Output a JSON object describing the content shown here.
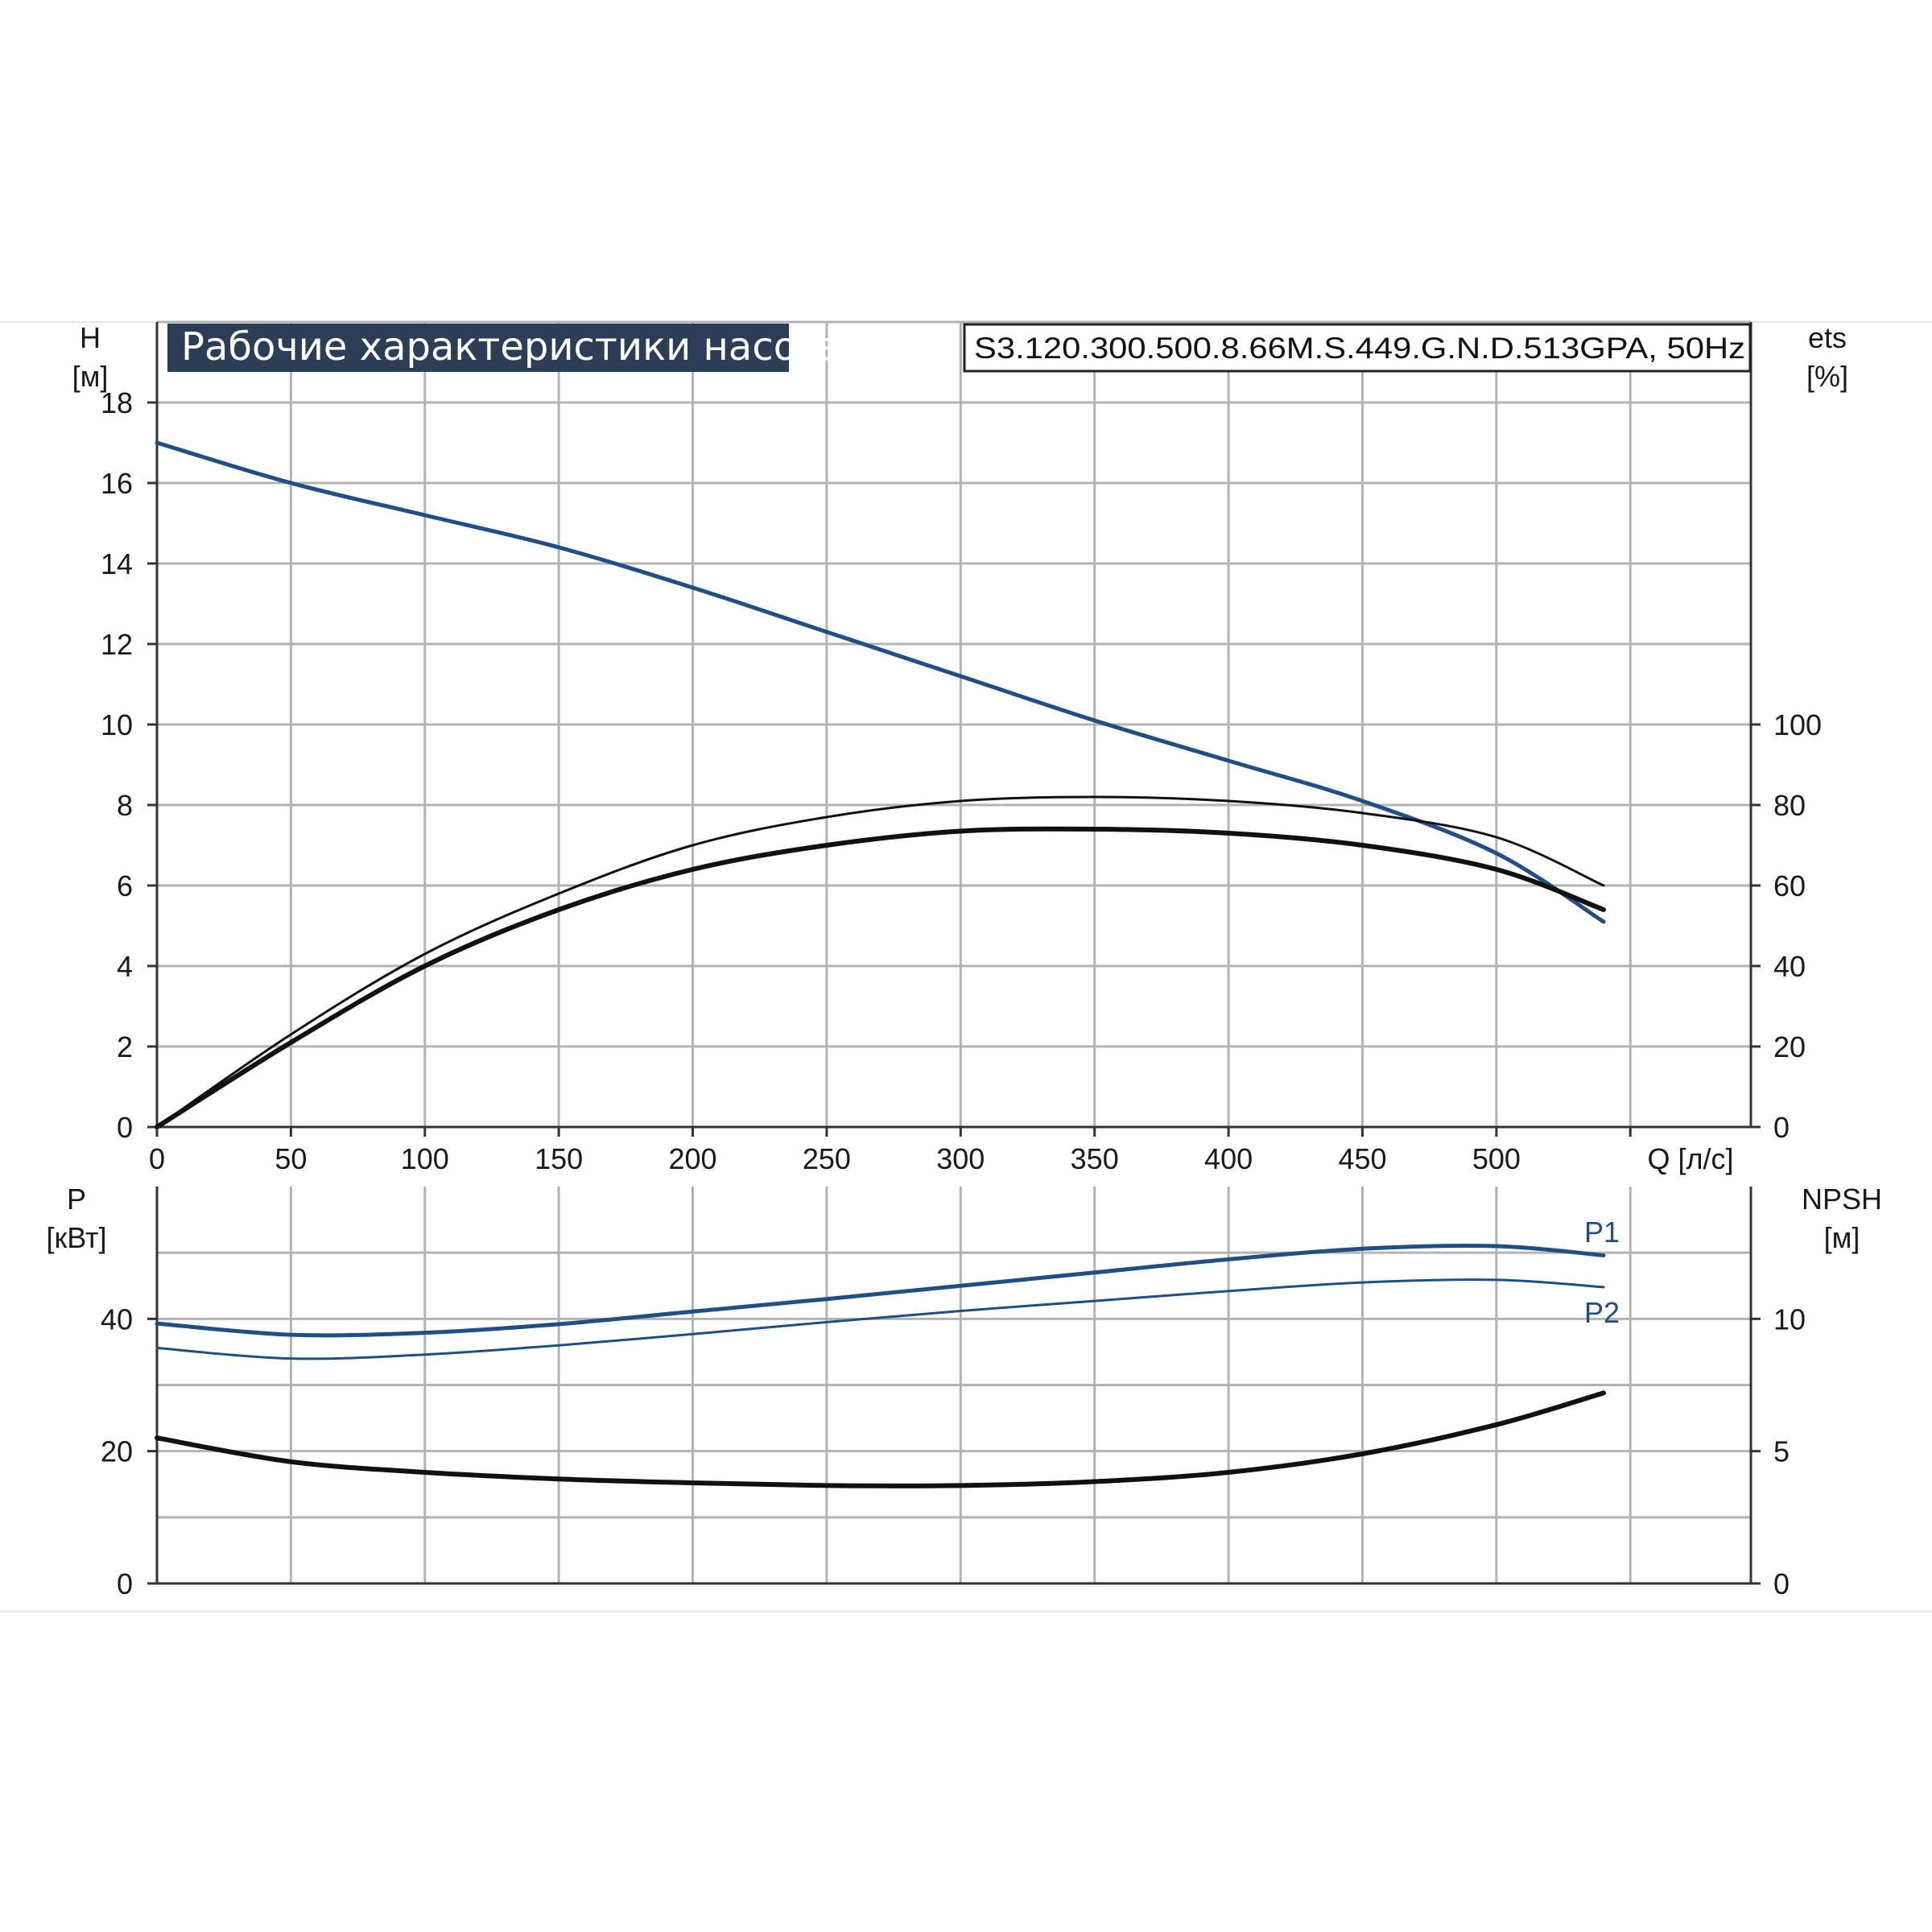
{
  "header": {
    "title": "Рабочие характеристики насоса",
    "model": "S3.120.300.500.8.66M.S.449.G.N.D.513GPA, 50Hz"
  },
  "colors": {
    "title_bg": "#2c3e55",
    "blue": "#1f4f85",
    "black": "#111111",
    "grid": "#b3b3b3"
  },
  "chart_data": [
    {
      "type": "line",
      "panel": "head-efficiency",
      "xlabel": "Q [л/с]",
      "xlim": [
        0,
        595
      ],
      "x_ticks": [
        0,
        50,
        100,
        150,
        200,
        250,
        300,
        350,
        400,
        450,
        500
      ],
      "left_axis": {
        "label": "H",
        "unit": "[м]",
        "ylim": [
          0,
          20
        ],
        "ticks": [
          0,
          2,
          4,
          6,
          8,
          10,
          12,
          14,
          16,
          18
        ]
      },
      "right_axis": {
        "label": "ets",
        "unit": "[%]",
        "ylim": [
          0,
          200
        ],
        "ticks": [
          0,
          20,
          40,
          60,
          80,
          100
        ]
      },
      "grid": true,
      "series": [
        {
          "axis": "left",
          "color": "blue",
          "width": 5,
          "x": [
            0,
            50,
            100,
            150,
            200,
            250,
            300,
            350,
            400,
            450,
            500,
            540
          ],
          "y": [
            17.0,
            16.0,
            15.2,
            14.4,
            13.4,
            12.3,
            11.2,
            10.1,
            9.1,
            8.1,
            6.8,
            5.1
          ]
        },
        {
          "axis": "right",
          "color": "black",
          "width": 3,
          "x": [
            0,
            50,
            100,
            150,
            200,
            250,
            300,
            350,
            400,
            450,
            500,
            540
          ],
          "y": [
            0,
            23,
            43,
            58,
            70,
            77,
            81,
            82,
            81,
            78,
            72,
            60
          ]
        },
        {
          "axis": "right",
          "color": "black",
          "width": 6,
          "x": [
            0,
            50,
            100,
            150,
            200,
            250,
            300,
            350,
            400,
            450,
            500,
            540
          ],
          "y": [
            0,
            21,
            40,
            54,
            64,
            70,
            73.5,
            74,
            73,
            70,
            64,
            54
          ]
        }
      ]
    },
    {
      "type": "line",
      "panel": "power-npsh",
      "xlim": [
        0,
        595
      ],
      "left_axis": {
        "label": "P",
        "unit": "[кВт]",
        "ylim": [
          0,
          60
        ],
        "ticks": [
          0,
          20,
          40
        ]
      },
      "right_axis": {
        "label": "NPSH",
        "unit": "[м]",
        "ylim": [
          0,
          15
        ],
        "ticks": [
          0,
          5,
          10
        ]
      },
      "grid": true,
      "series": [
        {
          "name": "P1",
          "axis": "left",
          "color": "blue",
          "width": 5,
          "x": [
            0,
            50,
            100,
            150,
            200,
            250,
            300,
            350,
            400,
            450,
            500,
            540
          ],
          "y": [
            39.3,
            37.6,
            37.9,
            39.2,
            41.1,
            43.0,
            45.0,
            47.0,
            49.0,
            50.6,
            51.0,
            49.6
          ]
        },
        {
          "name": "P2",
          "axis": "left",
          "color": "blue",
          "width": 3,
          "x": [
            0,
            50,
            100,
            150,
            200,
            250,
            300,
            350,
            400,
            450,
            500,
            540
          ],
          "y": [
            35.6,
            34.0,
            34.6,
            36.0,
            37.7,
            39.5,
            41.2,
            42.7,
            44.2,
            45.5,
            45.9,
            44.8
          ]
        },
        {
          "axis": "right",
          "color": "black",
          "width": 6,
          "x": [
            0,
            50,
            100,
            150,
            200,
            250,
            300,
            350,
            400,
            450,
            500,
            540
          ],
          "y": [
            5.5,
            4.6,
            4.2,
            3.95,
            3.8,
            3.7,
            3.7,
            3.85,
            4.2,
            4.9,
            6.0,
            7.2
          ]
        }
      ]
    }
  ]
}
